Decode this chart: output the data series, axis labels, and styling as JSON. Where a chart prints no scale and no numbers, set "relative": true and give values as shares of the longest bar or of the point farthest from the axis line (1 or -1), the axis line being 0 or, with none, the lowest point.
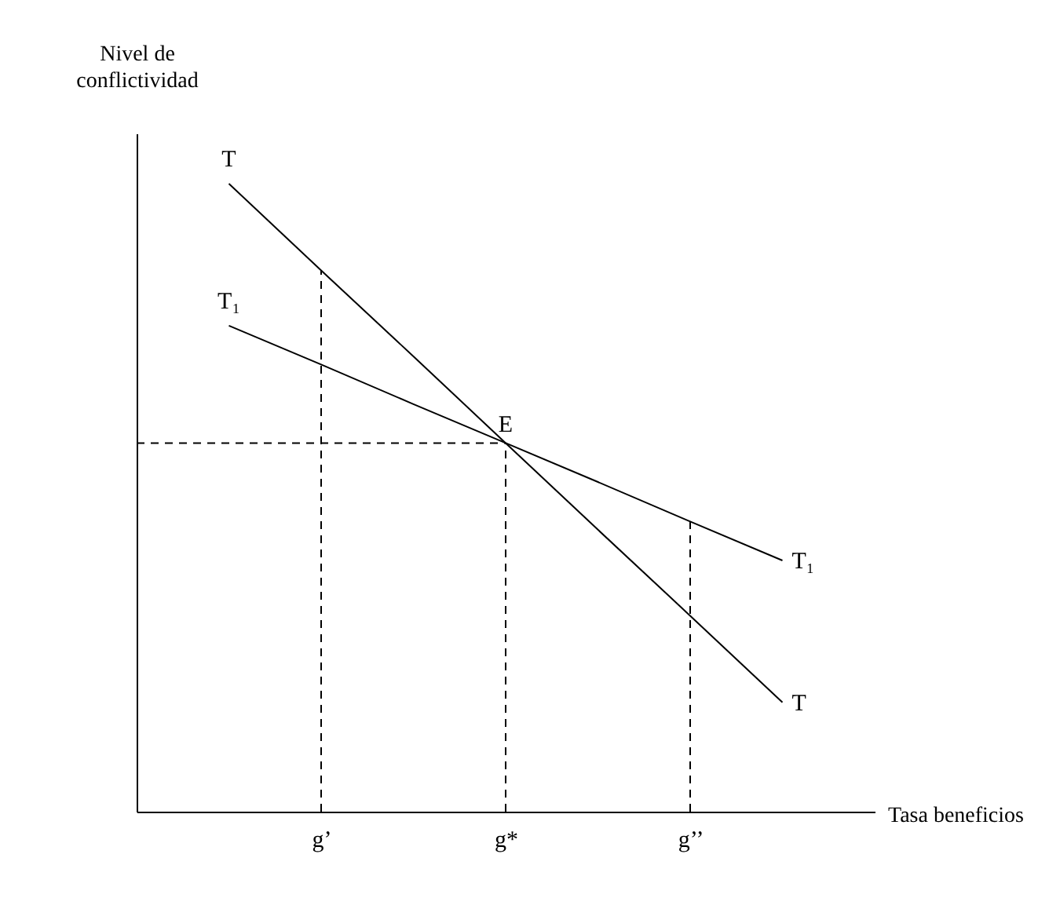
{
  "chart_data": {
    "type": "line",
    "relative": true,
    "xlabel": "Tasa beneficios",
    "ylabel": "Nivel de conflictividad",
    "categories": [
      null,
      null,
      "g’",
      null,
      "g*",
      null,
      "g’’",
      null,
      null
    ],
    "series": [
      {
        "name": "T",
        "color": "#000000",
        "values": [
          null,
          1,
          0.862,
          0.725,
          0.587,
          0.449,
          0.312,
          0.174,
          null
        ]
      },
      {
        "name": "T₁",
        "color": "#000000",
        "values": [
          null,
          0.774,
          0.712,
          0.649,
          0.587,
          0.525,
          0.462,
          0.4,
          null
        ]
      },
      {
        "line_style": "dashed",
        "color": "#000000",
        "x": [
          "g’",
          "g’"
        ],
        "values": [
          0,
          0.862
        ]
      },
      {
        "line_style": "dashed",
        "color": "#000000",
        "x": [
          "g*",
          "g*"
        ],
        "values": [
          0,
          0.587
        ]
      },
      {
        "line_style": "dashed",
        "color": "#000000",
        "x": [
          "g’’",
          "g’’"
        ],
        "values": [
          0,
          0.462
        ]
      },
      {
        "line_style": "dashed",
        "color": "#000000",
        "values": [
          0.587,
          0.587,
          0.587,
          0.587,
          0.587,
          null,
          null,
          null,
          null
        ]
      }
    ],
    "annotations": [
      {
        "text": "E",
        "x": "g*",
        "y": 0.587
      }
    ]
  }
}
